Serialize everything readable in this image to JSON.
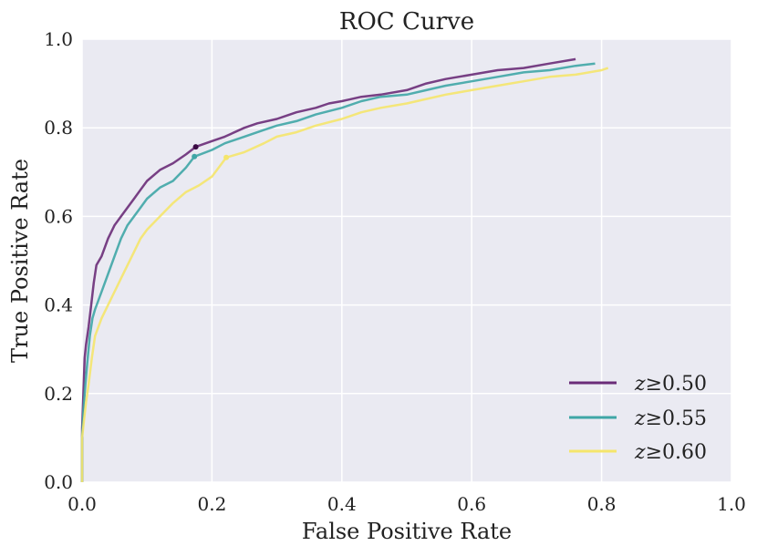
{
  "chart_data": {
    "type": "line",
    "title": "ROC Curve",
    "xlabel": "False Positive Rate",
    "ylabel": "True Positive Rate",
    "xlim": [
      0.0,
      1.0
    ],
    "ylim": [
      0.0,
      1.0
    ],
    "grid": true,
    "background": "#eaeaf2",
    "legend_position": "bottom-right",
    "x_ticks": [
      "0.0",
      "0.2",
      "0.4",
      "0.6",
      "0.8",
      "1.0"
    ],
    "y_ticks": [
      "0.0",
      "0.2",
      "0.4",
      "0.6",
      "0.8",
      "1.0"
    ],
    "series": [
      {
        "name": "z ≥0.50",
        "var": "z",
        "threshold": "≥0.50",
        "color": "#6a2c78",
        "marker": [
          0.175,
          0.757
        ],
        "points": [
          [
            0.0,
            0.0
          ],
          [
            0.0,
            0.12
          ],
          [
            0.002,
            0.2
          ],
          [
            0.004,
            0.28
          ],
          [
            0.006,
            0.31
          ],
          [
            0.01,
            0.35
          ],
          [
            0.014,
            0.4
          ],
          [
            0.018,
            0.45
          ],
          [
            0.022,
            0.49
          ],
          [
            0.03,
            0.51
          ],
          [
            0.04,
            0.55
          ],
          [
            0.05,
            0.58
          ],
          [
            0.06,
            0.6
          ],
          [
            0.07,
            0.62
          ],
          [
            0.08,
            0.64
          ],
          [
            0.09,
            0.66
          ],
          [
            0.1,
            0.68
          ],
          [
            0.12,
            0.705
          ],
          [
            0.14,
            0.72
          ],
          [
            0.16,
            0.74
          ],
          [
            0.175,
            0.757
          ],
          [
            0.2,
            0.77
          ],
          [
            0.22,
            0.78
          ],
          [
            0.25,
            0.8
          ],
          [
            0.27,
            0.81
          ],
          [
            0.3,
            0.82
          ],
          [
            0.33,
            0.835
          ],
          [
            0.36,
            0.845
          ],
          [
            0.38,
            0.855
          ],
          [
            0.4,
            0.86
          ],
          [
            0.43,
            0.87
          ],
          [
            0.46,
            0.875
          ],
          [
            0.5,
            0.885
          ],
          [
            0.53,
            0.9
          ],
          [
            0.56,
            0.91
          ],
          [
            0.6,
            0.92
          ],
          [
            0.64,
            0.93
          ],
          [
            0.68,
            0.935
          ],
          [
            0.72,
            0.945
          ],
          [
            0.76,
            0.955
          ]
        ]
      },
      {
        "name": "z ≥0.55",
        "var": "z",
        "threshold": "≥0.55",
        "color": "#3fa6a6",
        "marker": [
          0.173,
          0.735
        ],
        "points": [
          [
            0.0,
            0.0
          ],
          [
            0.0,
            0.1
          ],
          [
            0.002,
            0.16
          ],
          [
            0.005,
            0.22
          ],
          [
            0.008,
            0.27
          ],
          [
            0.012,
            0.33
          ],
          [
            0.016,
            0.37
          ],
          [
            0.02,
            0.39
          ],
          [
            0.03,
            0.43
          ],
          [
            0.04,
            0.47
          ],
          [
            0.05,
            0.51
          ],
          [
            0.06,
            0.55
          ],
          [
            0.07,
            0.58
          ],
          [
            0.08,
            0.6
          ],
          [
            0.09,
            0.62
          ],
          [
            0.1,
            0.64
          ],
          [
            0.12,
            0.665
          ],
          [
            0.14,
            0.68
          ],
          [
            0.16,
            0.71
          ],
          [
            0.173,
            0.735
          ],
          [
            0.2,
            0.75
          ],
          [
            0.22,
            0.765
          ],
          [
            0.25,
            0.78
          ],
          [
            0.28,
            0.795
          ],
          [
            0.3,
            0.805
          ],
          [
            0.33,
            0.815
          ],
          [
            0.36,
            0.83
          ],
          [
            0.4,
            0.845
          ],
          [
            0.43,
            0.86
          ],
          [
            0.46,
            0.87
          ],
          [
            0.5,
            0.875
          ],
          [
            0.53,
            0.885
          ],
          [
            0.56,
            0.895
          ],
          [
            0.6,
            0.905
          ],
          [
            0.64,
            0.915
          ],
          [
            0.68,
            0.925
          ],
          [
            0.72,
            0.93
          ],
          [
            0.76,
            0.94
          ],
          [
            0.79,
            0.945
          ]
        ]
      },
      {
        "name": "z ≥0.60",
        "var": "z",
        "threshold": "≥0.60",
        "color": "#f5e56b",
        "marker": [
          0.222,
          0.733
        ],
        "points": [
          [
            0.0,
            0.0
          ],
          [
            0.0,
            0.1
          ],
          [
            0.003,
            0.14
          ],
          [
            0.006,
            0.18
          ],
          [
            0.01,
            0.22
          ],
          [
            0.015,
            0.28
          ],
          [
            0.02,
            0.33
          ],
          [
            0.03,
            0.37
          ],
          [
            0.04,
            0.4
          ],
          [
            0.05,
            0.43
          ],
          [
            0.06,
            0.46
          ],
          [
            0.07,
            0.49
          ],
          [
            0.08,
            0.52
          ],
          [
            0.09,
            0.55
          ],
          [
            0.1,
            0.57
          ],
          [
            0.12,
            0.6
          ],
          [
            0.14,
            0.63
          ],
          [
            0.16,
            0.655
          ],
          [
            0.18,
            0.67
          ],
          [
            0.2,
            0.69
          ],
          [
            0.222,
            0.733
          ],
          [
            0.25,
            0.745
          ],
          [
            0.28,
            0.765
          ],
          [
            0.3,
            0.78
          ],
          [
            0.33,
            0.79
          ],
          [
            0.36,
            0.805
          ],
          [
            0.4,
            0.82
          ],
          [
            0.43,
            0.835
          ],
          [
            0.46,
            0.845
          ],
          [
            0.5,
            0.855
          ],
          [
            0.53,
            0.865
          ],
          [
            0.56,
            0.875
          ],
          [
            0.6,
            0.885
          ],
          [
            0.64,
            0.895
          ],
          [
            0.68,
            0.905
          ],
          [
            0.72,
            0.915
          ],
          [
            0.76,
            0.92
          ],
          [
            0.8,
            0.93
          ],
          [
            0.81,
            0.935
          ]
        ]
      }
    ]
  }
}
